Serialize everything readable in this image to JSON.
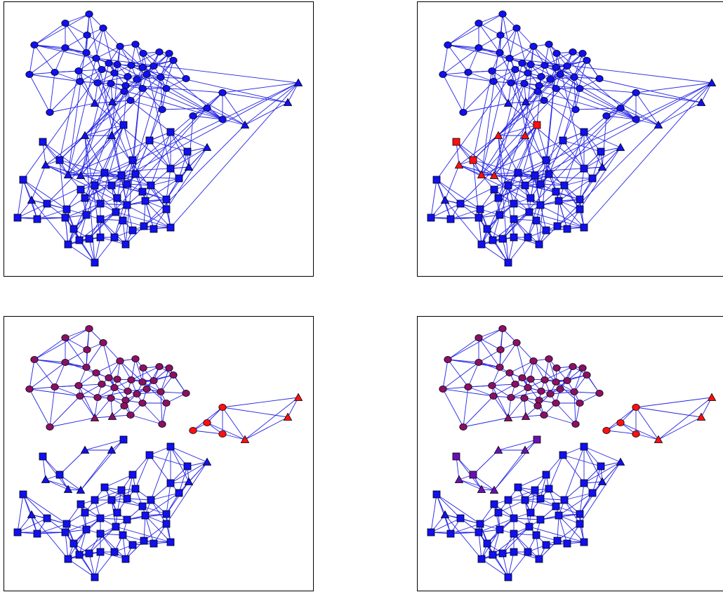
{
  "figure": {
    "colors": {
      "edge": "#2323e6",
      "blue": "#1010f0",
      "red": "#ff1010",
      "maroon": "#8a1064",
      "purple": "#6a10b0",
      "frame": "#000000",
      "node_stroke": "#000000"
    },
    "panels": [
      {
        "id": "top-left",
        "edges": "full",
        "groups": [
          "blue",
          "blue",
          "blue",
          "blue"
        ]
      },
      {
        "id": "top-right",
        "edges": "full",
        "groups": [
          "blue",
          "blue",
          "red",
          "blue"
        ]
      },
      {
        "id": "bottom-left",
        "edges": "split",
        "groups": [
          "maroon",
          "red",
          "blue",
          "blue"
        ]
      },
      {
        "id": "bottom-right",
        "edges": "split",
        "groups": [
          "maroon",
          "red",
          "purple",
          "blue"
        ]
      }
    ]
  }
}
